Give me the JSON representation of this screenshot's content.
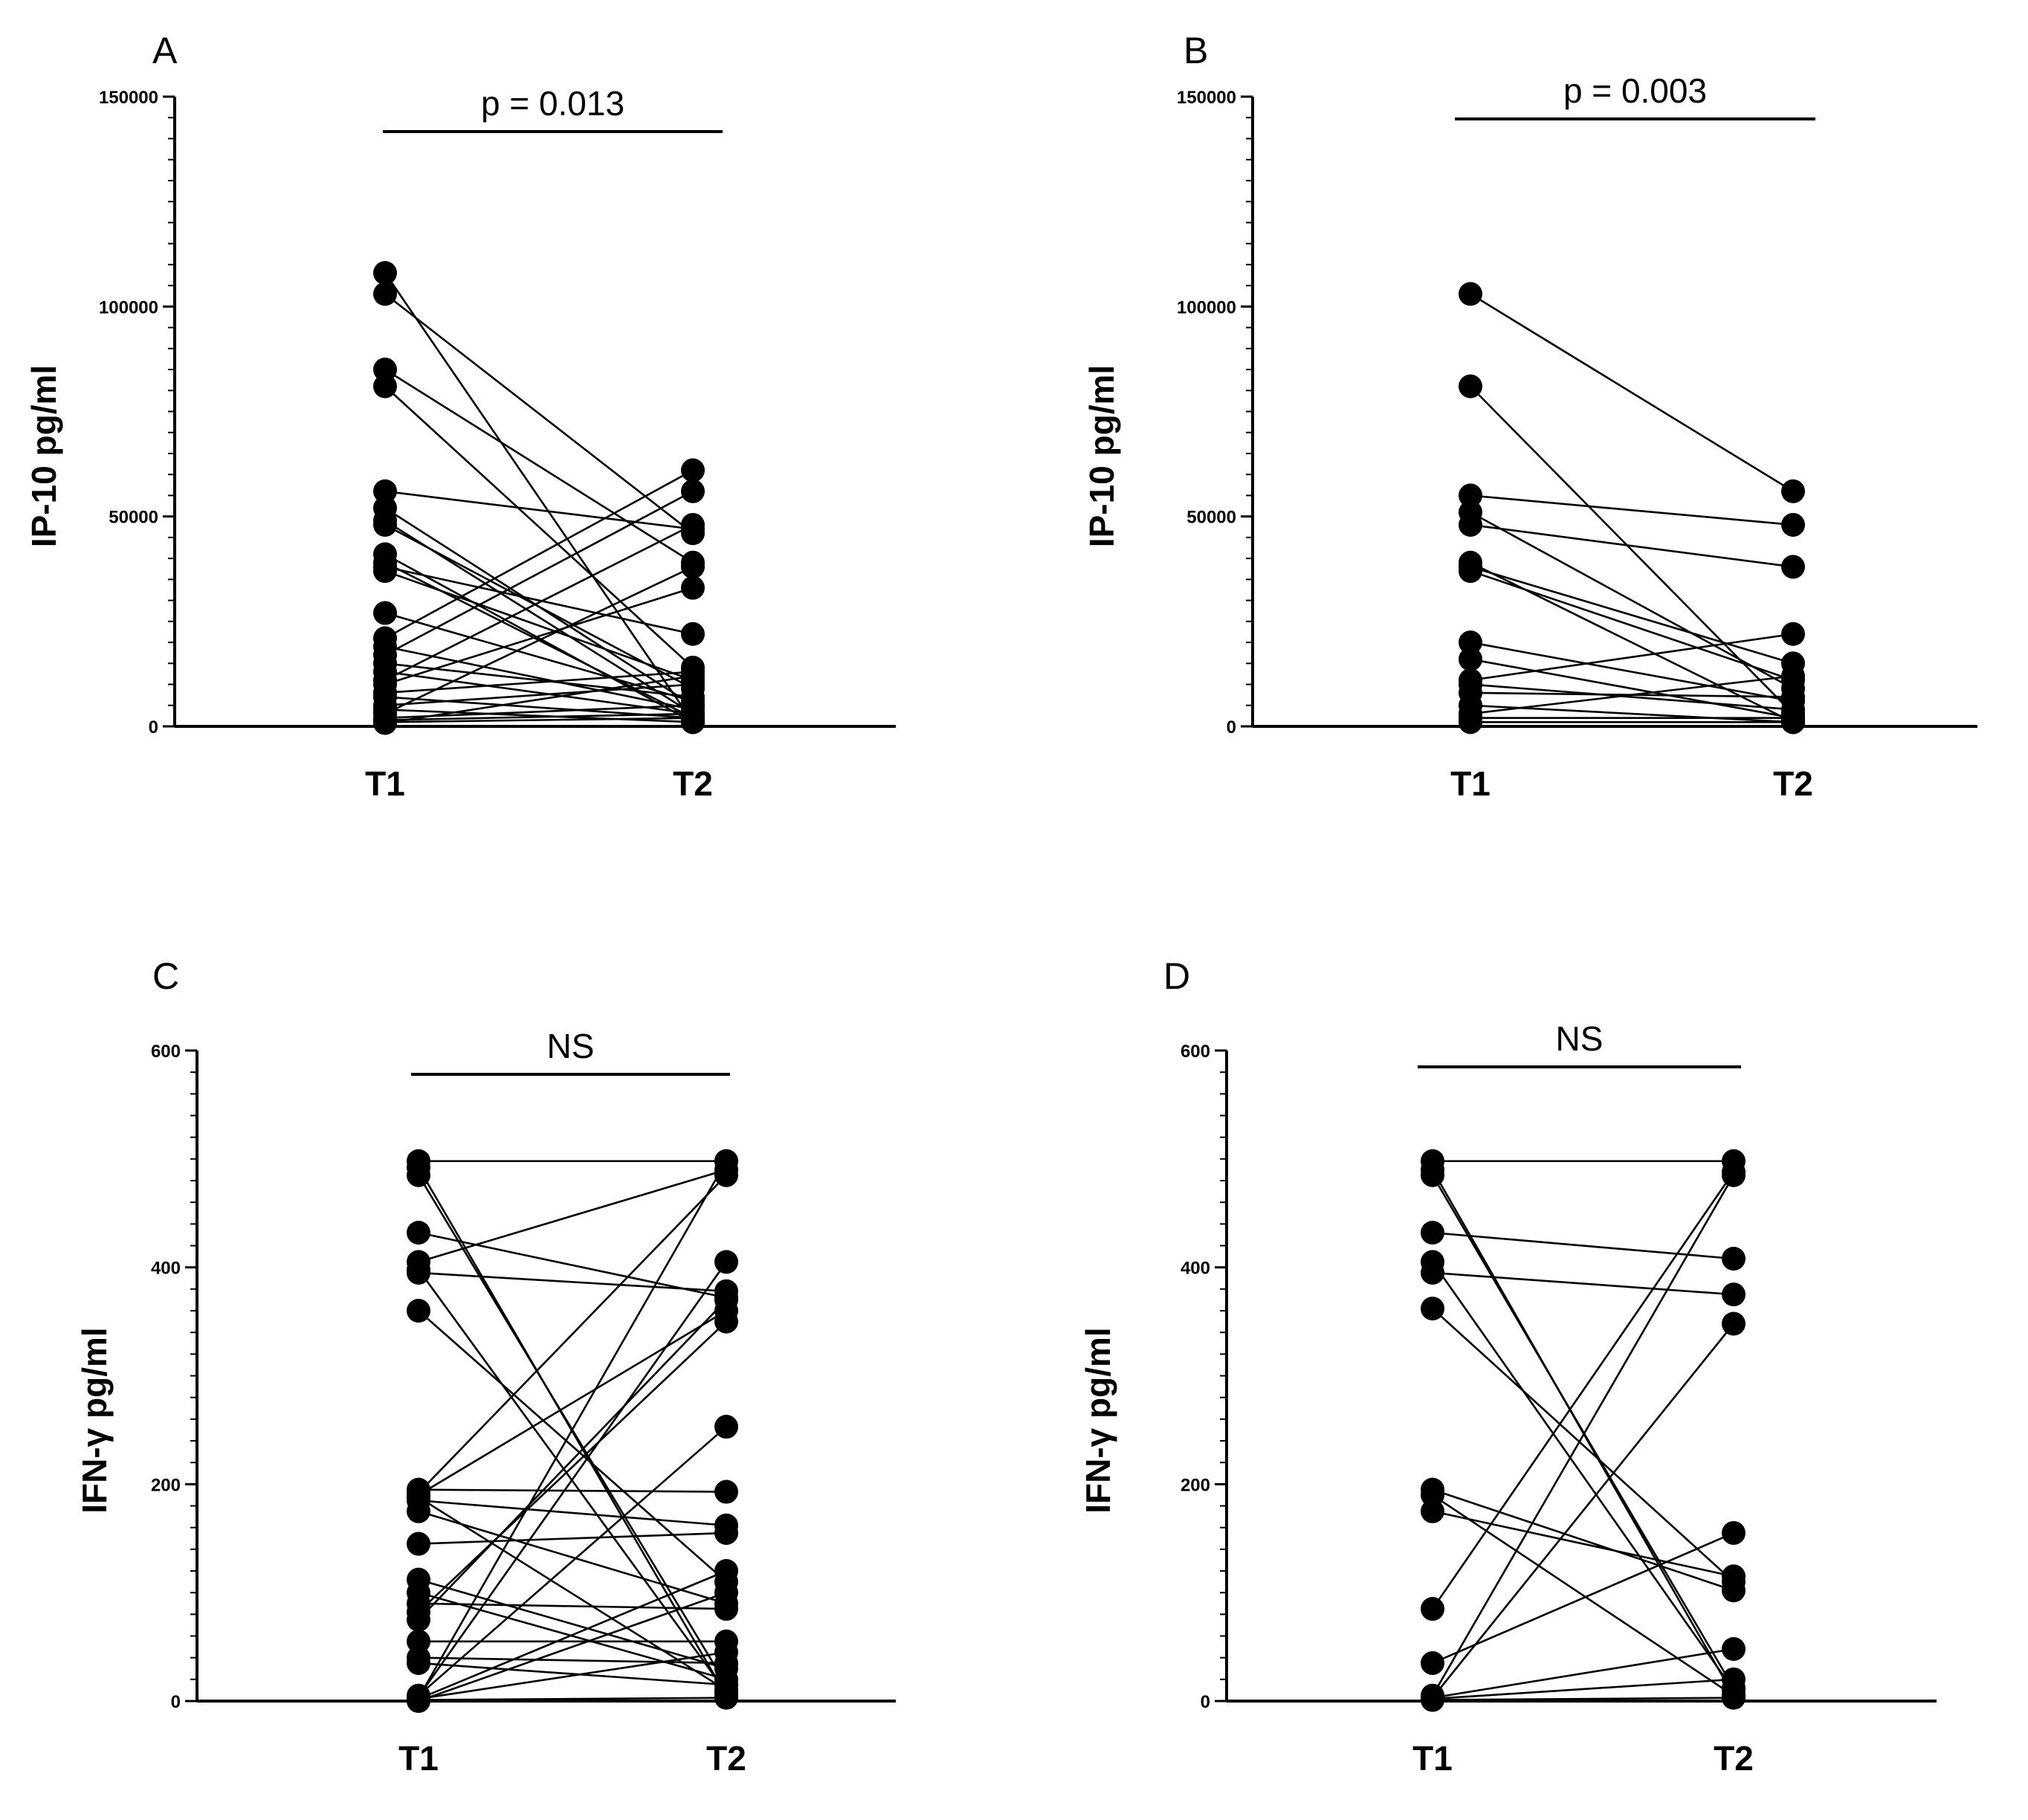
{
  "chart_data": [
    {
      "panel": "A",
      "type": "line",
      "ylabel": "IP-10 pg/ml",
      "categories": [
        "T1",
        "T2"
      ],
      "ylim": [
        0,
        150000
      ],
      "yticks": [
        0,
        50000,
        100000,
        150000
      ],
      "ytick_labels": [
        "0",
        "50000",
        "100000",
        "150000"
      ],
      "significance": "p = 0.013",
      "pairs": [
        [
          108000,
          1000
        ],
        [
          103000,
          46000
        ],
        [
          85000,
          39000
        ],
        [
          81000,
          14000
        ],
        [
          56000,
          47000
        ],
        [
          52000,
          5000
        ],
        [
          49000,
          3000
        ],
        [
          48000,
          9000
        ],
        [
          41000,
          1000
        ],
        [
          39000,
          2000
        ],
        [
          38000,
          22000
        ],
        [
          37000,
          11000
        ],
        [
          27000,
          6000
        ],
        [
          21000,
          61000
        ],
        [
          19000,
          4000
        ],
        [
          17000,
          56000
        ],
        [
          15000,
          7000
        ],
        [
          13000,
          3000
        ],
        [
          11000,
          48000
        ],
        [
          10000,
          33000
        ],
        [
          8000,
          13000
        ],
        [
          7000,
          2000
        ],
        [
          5000,
          10000
        ],
        [
          4000,
          1000
        ],
        [
          3000,
          38000
        ],
        [
          2000,
          5000
        ],
        [
          1500,
          3000
        ],
        [
          1000,
          2000
        ],
        [
          800,
          12000
        ]
      ]
    },
    {
      "panel": "B",
      "type": "line",
      "ylabel": "IP-10 pg/ml",
      "categories": [
        "T1",
        "T2"
      ],
      "ylim": [
        0,
        150000
      ],
      "yticks": [
        0,
        50000,
        100000,
        150000
      ],
      "ytick_labels": [
        "0",
        "50000",
        "100000",
        "150000"
      ],
      "significance": "p = 0.003",
      "pairs": [
        [
          103000,
          56000
        ],
        [
          81000,
          3000
        ],
        [
          55000,
          48000
        ],
        [
          51000,
          9000
        ],
        [
          48000,
          38000
        ],
        [
          39000,
          1000
        ],
        [
          38000,
          15000
        ],
        [
          37000,
          11000
        ],
        [
          20000,
          6000
        ],
        [
          16000,
          2000
        ],
        [
          11000,
          22000
        ],
        [
          10000,
          4000
        ],
        [
          8000,
          7000
        ],
        [
          5000,
          1000
        ],
        [
          3000,
          12000
        ],
        [
          2000,
          2000
        ],
        [
          1000,
          1000
        ]
      ]
    },
    {
      "panel": "C",
      "type": "line",
      "ylabel": "IFN-γ pg/ml",
      "categories": [
        "T1",
        "T2"
      ],
      "ylim": [
        0,
        600
      ],
      "yticks": [
        0,
        200,
        400,
        600
      ],
      "ytick_labels": [
        "0",
        "200",
        "400",
        "600"
      ],
      "significance": "NS",
      "pairs": [
        [
          498,
          498
        ],
        [
          492,
          5
        ],
        [
          485,
          15
        ],
        [
          432,
          372
        ],
        [
          405,
          490
        ],
        [
          398,
          8
        ],
        [
          395,
          378
        ],
        [
          360,
          110
        ],
        [
          195,
          193
        ],
        [
          192,
          485
        ],
        [
          190,
          360
        ],
        [
          188,
          10
        ],
        [
          185,
          162
        ],
        [
          175,
          90
        ],
        [
          145,
          155
        ],
        [
          112,
          30
        ],
        [
          100,
          20
        ],
        [
          90,
          85
        ],
        [
          82,
          350
        ],
        [
          75,
          370
        ],
        [
          55,
          55
        ],
        [
          40,
          35
        ],
        [
          35,
          15
        ],
        [
          5,
          253
        ],
        [
          4,
          405
        ],
        [
          3,
          498
        ],
        [
          2,
          45
        ],
        [
          2,
          120
        ],
        [
          1,
          3
        ],
        [
          0,
          100
        ]
      ]
    },
    {
      "panel": "D",
      "type": "line",
      "ylabel": "IFN-γ pg/ml",
      "categories": [
        "T1",
        "T2"
      ],
      "ylim": [
        0,
        600
      ],
      "yticks": [
        0,
        200,
        400,
        600
      ],
      "ytick_labels": [
        "0",
        "200",
        "400",
        "600"
      ],
      "significance": "NS",
      "pairs": [
        [
          498,
          498
        ],
        [
          490,
          5
        ],
        [
          485,
          12
        ],
        [
          432,
          408
        ],
        [
          405,
          10
        ],
        [
          395,
          375
        ],
        [
          362,
          110
        ],
        [
          195,
          102
        ],
        [
          190,
          5
        ],
        [
          175,
          115
        ],
        [
          85,
          488
        ],
        [
          35,
          155
        ],
        [
          5,
          485
        ],
        [
          3,
          348
        ],
        [
          3,
          48
        ],
        [
          2,
          20
        ],
        [
          1,
          3
        ]
      ]
    }
  ]
}
